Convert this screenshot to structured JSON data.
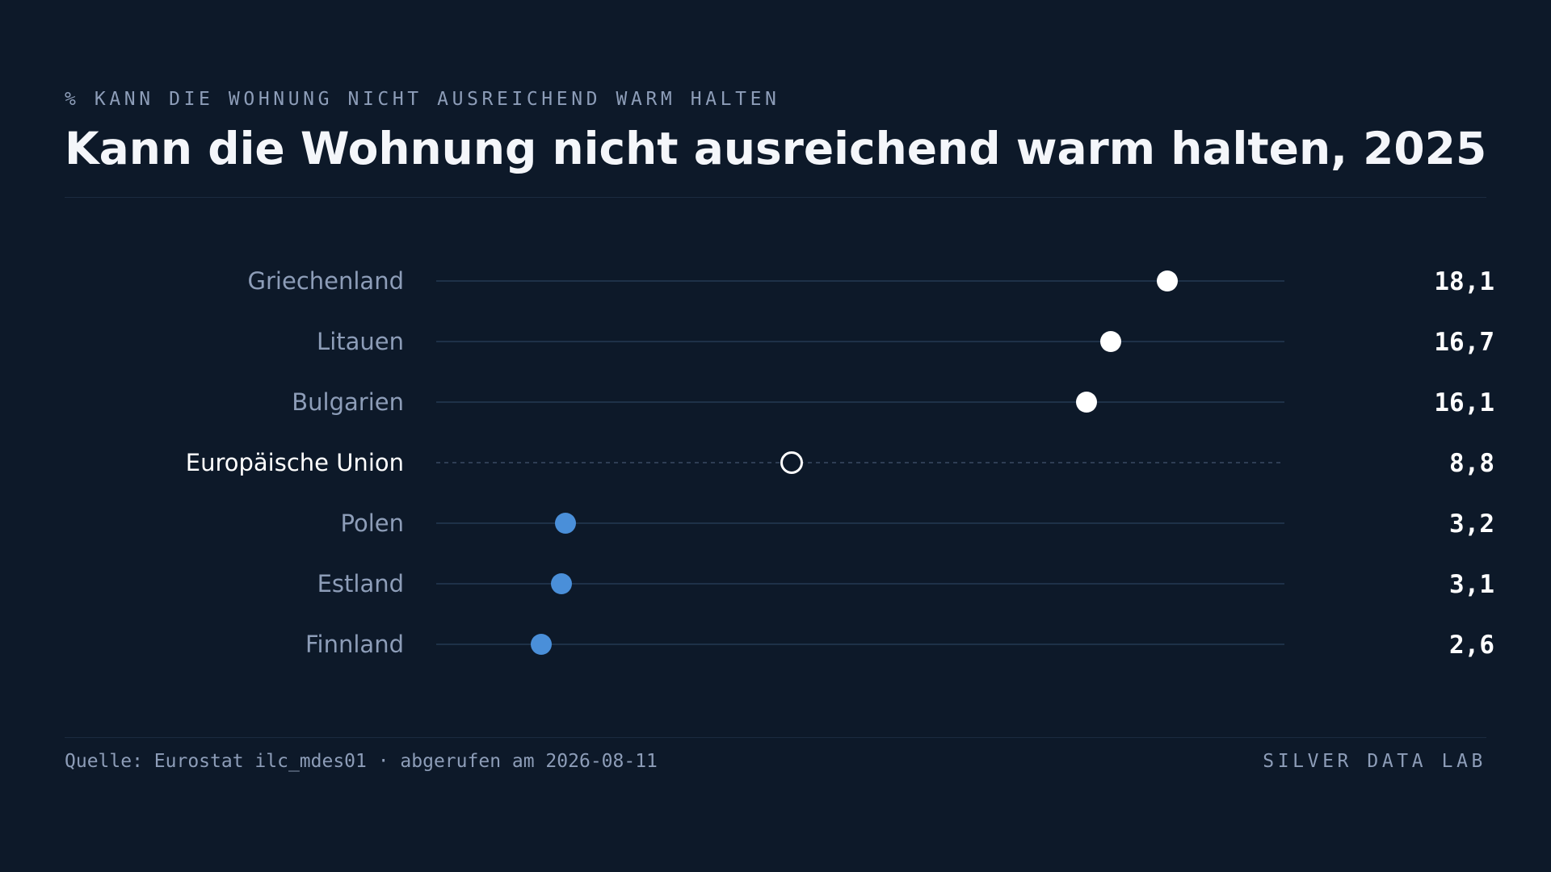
{
  "header": {
    "kicker": "% KANN DIE WOHNUNG NICHT AUSREICHEND WARM HALTEN",
    "title": "Kann die Wohnung nicht ausreichend warm halten, 2025"
  },
  "footer": {
    "source": "Quelle: Eurostat ilc_mdes01 · abgerufen am 2026-08-11",
    "brand": "SILVER DATA LAB"
  },
  "colors": {
    "background": "#0d1929",
    "high": "#ffffff",
    "low": "#4a8fd9",
    "reference": "#ffffff",
    "track": "#1e3148",
    "label": "#8d9db8",
    "reference_label": "#ffffff",
    "value": "#ffffff"
  },
  "chart_data": {
    "type": "scatter",
    "subtype": "dot-plot",
    "title": "Kann die Wohnung nicht ausreichend warm halten, 2025",
    "xlabel": "",
    "ylabel": "",
    "xlim": [
      0,
      21
    ],
    "grid": false,
    "categories": [
      "Griechenland",
      "Litauen",
      "Bulgarien",
      "Europäische Union",
      "Polen",
      "Estland",
      "Finnland"
    ],
    "values": [
      18.1,
      16.7,
      16.1,
      8.8,
      3.2,
      3.1,
      2.6
    ],
    "value_labels": [
      "18,1",
      "16,7",
      "16,1",
      "8,8",
      "3,2",
      "3,1",
      "2,6"
    ],
    "groups": [
      "high",
      "high",
      "high",
      "reference",
      "low",
      "low",
      "low"
    ]
  }
}
